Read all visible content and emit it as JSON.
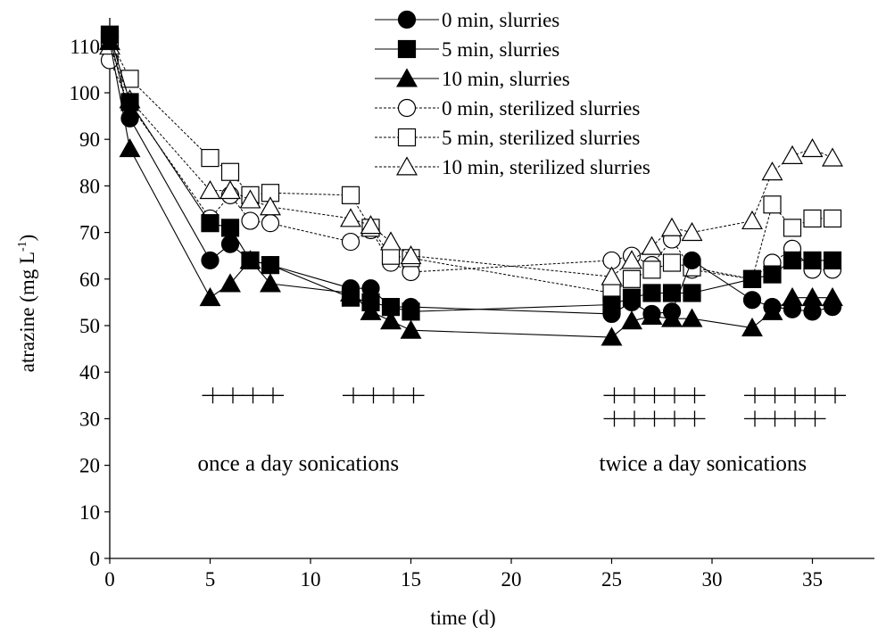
{
  "chart_data": {
    "type": "scatter",
    "title": "",
    "xlabel": "time (d)",
    "ylabel_main": "atrazine (mg L",
    "ylabel_sup": "-1",
    "ylabel_close": ")",
    "xlim": [
      0,
      38
    ],
    "ylim": [
      0,
      115
    ],
    "xticks": [
      0,
      5,
      10,
      15,
      20,
      25,
      30,
      35
    ],
    "yticks": [
      0,
      10,
      20,
      30,
      40,
      50,
      60,
      70,
      80,
      90,
      100,
      110
    ],
    "legend_position": "top-right",
    "series": [
      {
        "name": "0 min, slurries",
        "marker": "circle",
        "fill": "#000000",
        "line": "solid",
        "x": [
          0,
          1,
          5,
          6,
          7,
          8,
          12,
          13,
          14,
          15,
          25,
          26,
          27,
          28,
          29,
          32,
          33,
          34,
          35,
          36
        ],
        "y": [
          112,
          94.5,
          64,
          67.5,
          64,
          63,
          58,
          58,
          54,
          54,
          52.5,
          55,
          52.5,
          53,
          64,
          55.5,
          54,
          53.5,
          53,
          54
        ]
      },
      {
        "name": "5 min, slurries",
        "marker": "square",
        "fill": "#000000",
        "line": "solid",
        "x": [
          0,
          1,
          5,
          6,
          7,
          8,
          12,
          13,
          14,
          15,
          25,
          26,
          27,
          28,
          29,
          32,
          33,
          34,
          35,
          36
        ],
        "y": [
          112.5,
          98,
          72,
          71,
          64,
          63,
          56,
          55,
          54,
          53,
          54.5,
          56,
          57,
          57,
          57,
          60,
          61,
          64,
          64,
          64
        ]
      },
      {
        "name": "10 min, slurries",
        "marker": "triangle",
        "fill": "#000000",
        "line": "solid",
        "x": [
          0,
          1,
          5,
          6,
          7,
          8,
          12,
          13,
          14,
          15,
          25,
          26,
          27,
          28,
          29,
          32,
          33,
          34,
          35,
          36
        ],
        "y": [
          111,
          88,
          56,
          59,
          64,
          59,
          57,
          53,
          51,
          49,
          47.5,
          51,
          52,
          51.5,
          51.5,
          49.5,
          53,
          56,
          56,
          56
        ]
      },
      {
        "name": "0 min, sterilized slurries",
        "marker": "circle",
        "fill": "#ffffff",
        "line": "dashed",
        "x": [
          0,
          1,
          5,
          6,
          7,
          8,
          12,
          13,
          14,
          15,
          25,
          26,
          27,
          28,
          29,
          32,
          33,
          34,
          35,
          36
        ],
        "y": [
          107,
          97.5,
          73,
          78,
          72.5,
          72,
          68,
          70.5,
          63.5,
          61.5,
          64,
          65,
          63,
          68.5,
          62,
          60,
          63.5,
          66.5,
          62,
          62
        ]
      },
      {
        "name": "5 min, sterilized slurries",
        "marker": "square",
        "fill": "#ffffff",
        "line": "dashed",
        "x": [
          0,
          1,
          5,
          6,
          7,
          8,
          12,
          13,
          14,
          15,
          25,
          26,
          27,
          28,
          29,
          32,
          33,
          34,
          35,
          36
        ],
        "y": [
          111.5,
          103,
          86,
          83,
          78,
          78.5,
          78,
          71,
          65,
          64.5,
          57,
          60,
          62,
          63.5,
          62.5,
          60,
          76,
          71,
          73,
          73
        ]
      },
      {
        "name": "10 min, sterilized slurries",
        "marker": "triangle",
        "fill": "#ffffff",
        "line": "dashed",
        "x": [
          0,
          1,
          5,
          6,
          7,
          8,
          12,
          13,
          14,
          15,
          25,
          26,
          27,
          28,
          29,
          32,
          33,
          34,
          35,
          36
        ],
        "y": [
          110,
          98.5,
          79,
          79,
          77,
          75.5,
          73,
          71.5,
          68,
          65,
          60.5,
          64,
          67,
          71,
          70,
          72.5,
          83,
          86.5,
          88,
          86
        ]
      }
    ],
    "annotations": [
      {
        "text": "once a day sonications",
        "x": 5,
        "y": 20
      },
      {
        "text": "twice a day sonications",
        "x": 25,
        "y": 20
      }
    ],
    "sonication_marks": [
      {
        "y": 35,
        "x": [
          5,
          6,
          7,
          8
        ]
      },
      {
        "y": 35,
        "x": [
          12,
          13,
          14,
          15
        ]
      },
      {
        "y": 35,
        "x": [
          25,
          26,
          27,
          28,
          29
        ]
      },
      {
        "y": 30,
        "x": [
          25,
          26,
          27,
          28,
          29
        ]
      },
      {
        "y": 35,
        "x": [
          32,
          33,
          34,
          35,
          36
        ]
      },
      {
        "y": 30,
        "x": [
          32,
          33,
          34,
          35
        ]
      }
    ]
  }
}
